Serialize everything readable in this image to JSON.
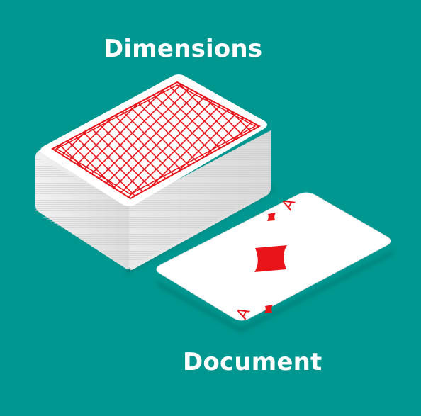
{
  "labels": {
    "top": "Dimensions",
    "bottom": "Document"
  },
  "card": {
    "rank": "A",
    "suit": "diamond-icon"
  },
  "colors": {
    "background": "#009790",
    "label_text": "#ffffff",
    "card_back_red": "#e8141a",
    "suit_red": "#e8141a",
    "card_face": "#ffffff",
    "deck_side": "#e6e6e6"
  }
}
